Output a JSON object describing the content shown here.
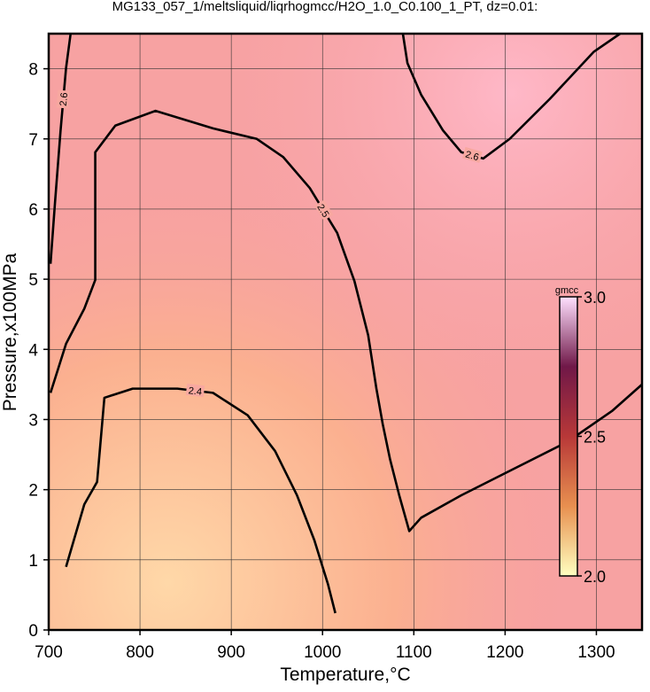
{
  "chart_data": {
    "type": "contour",
    "title": "MG133_057_1/meltsliquid/liqrhogmcc/H2O_1.0_C0.100_1_PT, dz=0.01:",
    "x_label": "Temperature,°C",
    "y_label": "Pressure,x100MPa",
    "xlim": [
      700,
      1350
    ],
    "ylim": [
      0,
      8.5
    ],
    "xticks": [
      700,
      800,
      900,
      1000,
      1100,
      1200,
      1300
    ],
    "yticks": [
      0,
      1,
      2,
      3,
      4,
      5,
      6,
      7,
      8
    ],
    "grid": true,
    "contours": [
      {
        "level": 2.5,
        "x": [
          702,
          719,
          739,
          751,
          751,
          773,
          817,
          880,
          928,
          957,
          986,
          1016,
          1035,
          1050,
          1059,
          1066,
          1074,
          1084,
          1095,
          1108,
          1152,
          1210,
          1268,
          1317,
          1350
        ],
        "y": [
          3.38,
          4.08,
          4.58,
          4.99,
          6.81,
          7.19,
          7.4,
          7.15,
          7.0,
          6.74,
          6.3,
          5.66,
          4.97,
          4.2,
          3.44,
          2.93,
          2.43,
          1.92,
          1.41,
          1.6,
          1.92,
          2.3,
          2.68,
          3.12,
          3.5
        ]
      },
      {
        "level": 2.4,
        "x": [
          719,
          739,
          753,
          761,
          792,
          841,
          880,
          918,
          948,
          972,
          991,
          1006,
          1014
        ],
        "y": [
          0.9,
          1.79,
          2.11,
          3.31,
          3.44,
          3.44,
          3.38,
          3.06,
          2.55,
          1.92,
          1.28,
          0.65,
          0.24
        ]
      },
      {
        "level": 2.6,
        "x": [
          1088,
          1093,
          1108,
          1132,
          1152,
          1176,
          1205,
          1249,
          1297,
          1326
        ],
        "y": [
          8.5,
          8.08,
          7.63,
          7.12,
          6.81,
          6.72,
          7.0,
          7.57,
          8.24,
          8.5
        ]
      },
      {
        "level": 2.6,
        "x": [
          702,
          707,
          713,
          719,
          724
        ],
        "y": [
          5.22,
          6.11,
          7.12,
          8.01,
          8.5
        ]
      }
    ],
    "colorbar": {
      "label": "gmcc",
      "lim": [
        2.0,
        3.0
      ],
      "ticks": [
        {
          "value": 2.0,
          "label": "2.0"
        },
        2.5,
        {
          "value": 3.0,
          "label": "3.0"
        }
      ],
      "colors": [
        "#ffffc0",
        "#e89050",
        "#b83838",
        "#701848",
        "#ffe0ff"
      ]
    }
  }
}
